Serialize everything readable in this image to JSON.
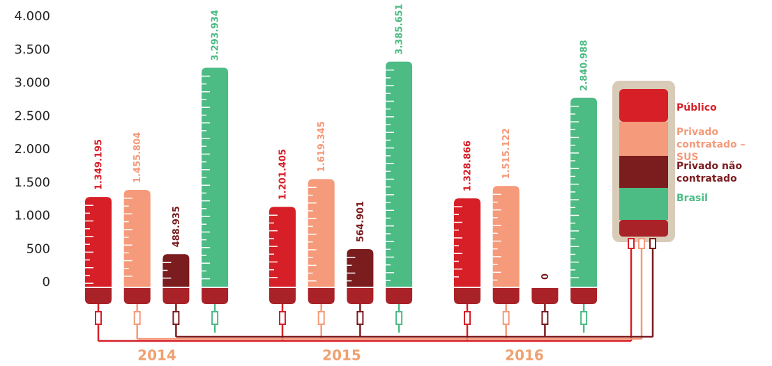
{
  "chart_data": {
    "type": "bar",
    "categories": [
      "2014",
      "2015",
      "2016"
    ],
    "series": [
      {
        "name": "Público",
        "color": "#d71f27",
        "values": [
          1349.195,
          1201.405,
          1328.866
        ],
        "value_labels": [
          "1.349.195",
          "1.201.405",
          "1.328.866"
        ]
      },
      {
        "name": "Privado contratado – SUS",
        "color": "#f59a7a",
        "values": [
          1455.804,
          1619.345,
          1515.122
        ],
        "value_labels": [
          "1.455.804",
          "1.619.345",
          "1.515.122"
        ]
      },
      {
        "name": "Privado não contratado",
        "color": "#7b1c1e",
        "values": [
          488.935,
          564.901,
          0
        ],
        "value_labels": [
          "488.935",
          "564.901",
          "0"
        ]
      },
      {
        "name": "Brasil",
        "color": "#4cbb84",
        "values": [
          3293.934,
          3385.651,
          2840.988
        ],
        "value_labels": [
          "3.293.934",
          "3.385.651",
          "2.840.988"
        ]
      }
    ],
    "ylim": [
      0,
      4000
    ],
    "yticks": [
      0,
      500,
      {
        "value": 1000,
        "label": "1.000"
      },
      {
        "value": 1500,
        "label": "1.500"
      },
      {
        "value": 2000,
        "label": "2.000"
      },
      {
        "value": 2500,
        "label": "2.500"
      },
      {
        "value": 3000,
        "label": "3.000"
      },
      {
        "value": 3500,
        "label": "3.500"
      },
      {
        "value": 4000,
        "label": "4.000"
      }
    ]
  }
}
